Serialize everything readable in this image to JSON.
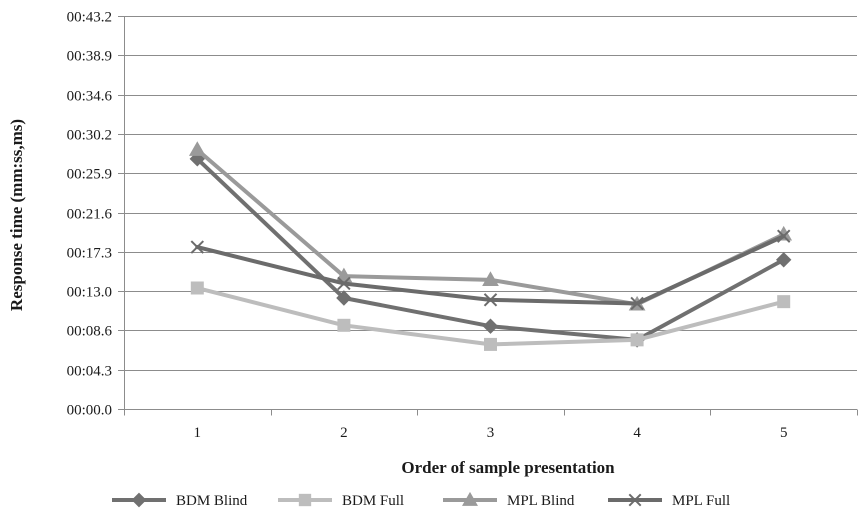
{
  "chart_data": {
    "type": "line",
    "title": "",
    "xlabel": "Order of  sample presentation",
    "ylabel": "Response time (mm:ss,ms)",
    "categories": [
      "1",
      "2",
      "3",
      "4",
      "5"
    ],
    "y_tick_labels": [
      "00:00.0",
      "00:04.3",
      "00:08.6",
      "00:13.0",
      "00:17.3",
      "00:21.6",
      "00:25.9",
      "00:30.2",
      "00:34.6",
      "00:38.9",
      "00:43.2"
    ],
    "y_ticks_seconds": [
      0,
      4.32,
      8.64,
      12.96,
      17.28,
      21.6,
      25.92,
      30.24,
      34.56,
      38.88,
      43.2
    ],
    "ylim": [
      0,
      43.2
    ],
    "grid": true,
    "legend_position": "bottom",
    "series": [
      {
        "name": "BDM Blind",
        "marker": "diamond",
        "color": "#707070",
        "values": [
          27.5,
          12.2,
          9.1,
          7.6,
          16.4
        ]
      },
      {
        "name": "BDM Full",
        "marker": "square",
        "color": "#bdbdbd",
        "values": [
          13.3,
          9.2,
          7.1,
          7.6,
          11.8
        ]
      },
      {
        "name": "MPL Blind",
        "marker": "triangle",
        "color": "#9a9a9a",
        "values": [
          28.5,
          14.6,
          14.2,
          11.5,
          19.2
        ]
      },
      {
        "name": "MPL Full",
        "marker": "x",
        "color": "#6b6b6b",
        "values": [
          17.8,
          13.8,
          12.0,
          11.6,
          19.0
        ]
      }
    ]
  }
}
